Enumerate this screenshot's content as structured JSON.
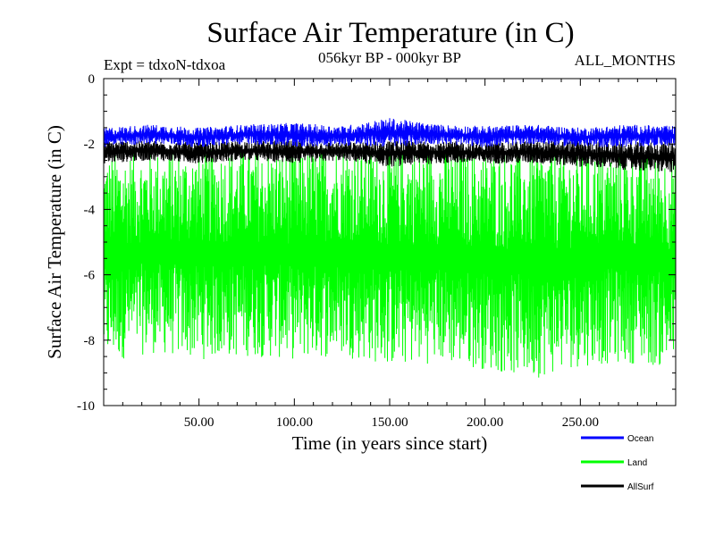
{
  "chart_data": {
    "type": "line",
    "title": "Surface Air Temperature (in C)",
    "subtitle_left": "Expt = tdxoN-tdxoa",
    "subtitle_center": "056kyr BP - 000kyr BP",
    "subtitle_right": "ALL_MONTHS",
    "xlabel": "Time (in years since start)",
    "ylabel": "Surface Air Temperature (in C)",
    "xlim": [
      0,
      300
    ],
    "ylim": [
      -10,
      0
    ],
    "x_ticks": [
      50,
      100,
      150,
      200,
      250
    ],
    "x_tick_labels": [
      "50.00",
      "100.00",
      "150.00",
      "200.00",
      "250.00"
    ],
    "y_ticks": [
      0,
      -2,
      -4,
      -6,
      -8,
      -10
    ],
    "y_tick_labels": [
      "0",
      "-2",
      "-4",
      "-6",
      "-8",
      "-10"
    ],
    "grid": false,
    "legend_position": "bottom-right",
    "series": [
      {
        "name": "Ocean",
        "color": "#0000ff",
        "draw_order": 2,
        "envelope_bottom": [
          -2.1,
          -2.0,
          -2.1,
          -2.0,
          -2.1,
          -2.05,
          -2.1,
          -2.0,
          -2.1,
          -2.0,
          -2.1,
          -2.1,
          -2.05
        ],
        "envelope_top": [
          -1.5,
          -1.4,
          -1.5,
          -1.4,
          -1.35,
          -1.45,
          -1.2,
          -1.4,
          -1.45,
          -1.4,
          -1.5,
          -1.4,
          -1.45
        ]
      },
      {
        "name": "Land",
        "color": "#00ff00",
        "draw_order": 0,
        "envelope_bottom": [
          -8.7,
          -8.4,
          -8.6,
          -8.5,
          -8.6,
          -8.5,
          -8.8,
          -8.7,
          -8.9,
          -9.2,
          -8.8,
          -8.7,
          -8.9
        ],
        "envelope_top": [
          -2.3,
          -2.2,
          -2.2,
          -2.1,
          -2.2,
          -2.0,
          -2.1,
          -2.1,
          -2.2,
          -2.1,
          -2.2,
          -2.2,
          -2.3
        ]
      },
      {
        "name": "AllSurf",
        "color": "#000000",
        "draw_order": 1,
        "envelope_bottom": [
          -2.6,
          -2.5,
          -2.6,
          -2.5,
          -2.6,
          -2.5,
          -2.7,
          -2.6,
          -2.6,
          -2.6,
          -2.7,
          -2.8,
          -2.9
        ],
        "envelope_top": [
          -1.9,
          -1.9,
          -1.95,
          -1.9,
          -1.9,
          -1.95,
          -1.9,
          -1.9,
          -1.95,
          -1.9,
          -1.9,
          -1.95,
          -1.9
        ]
      }
    ]
  }
}
